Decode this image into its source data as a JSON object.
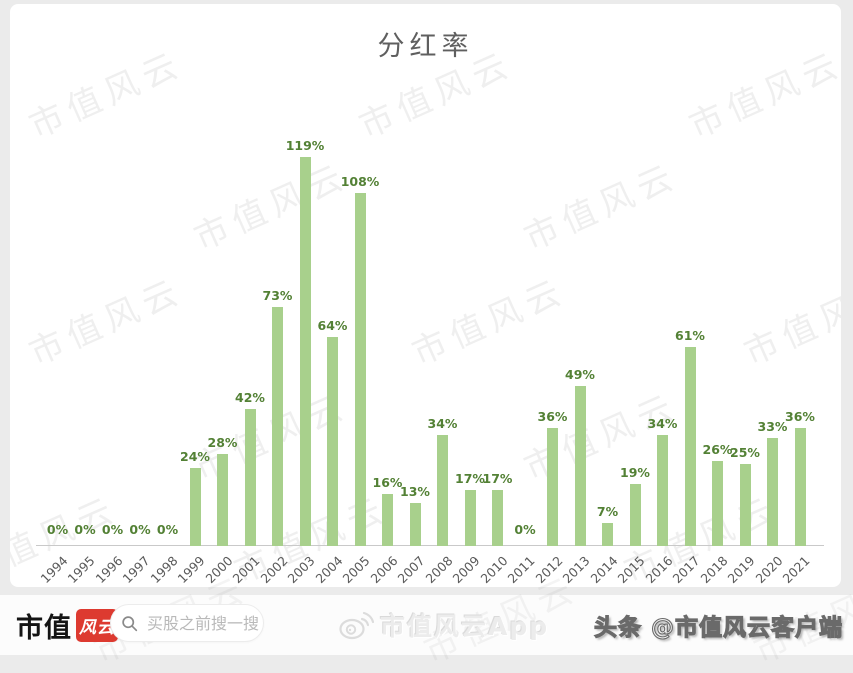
{
  "watermark_text": "市值风云",
  "chart_data": {
    "type": "bar",
    "title": "分红率",
    "categories": [
      "1994",
      "1995",
      "1996",
      "1997",
      "1998",
      "1999",
      "2000",
      "2001",
      "2002",
      "2003",
      "2004",
      "2005",
      "2006",
      "2007",
      "2008",
      "2009",
      "2010",
      "2011",
      "2012",
      "2013",
      "2014",
      "2015",
      "2016",
      "2017",
      "2018",
      "2019",
      "2020",
      "2021"
    ],
    "values": [
      0,
      0,
      0,
      0,
      0,
      24,
      28,
      42,
      73,
      119,
      64,
      108,
      16,
      13,
      34,
      17,
      17,
      0,
      36,
      49,
      7,
      19,
      34,
      61,
      26,
      25,
      33,
      36
    ],
    "unit": "%",
    "data_label_format": "{value}%",
    "xlabel": "",
    "ylabel": "",
    "ylim": [
      0,
      130
    ],
    "grid": false,
    "legend": false,
    "bar_color": "#a8d08c",
    "label_color": "#538135",
    "axis_label_color": "#595959",
    "axis_line_color": "#c9c9c9"
  },
  "footer": {
    "brand_prefix": "市值",
    "brand_badge": "风云",
    "search_placeholder": "买股之前搜一搜",
    "app_watermark": "市值风云App",
    "attribution": "头条 @市值风云客户端"
  }
}
